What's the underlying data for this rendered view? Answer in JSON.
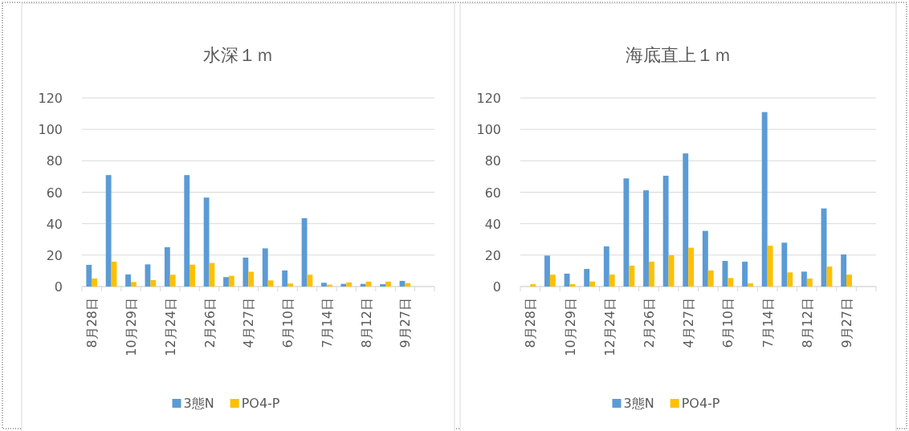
{
  "chart_data": [
    {
      "type": "bar",
      "title": "水深１ｍ",
      "categories": [
        "8月28日",
        null,
        "10月29日",
        null,
        "12月24日",
        null,
        "2月26日",
        null,
        "4月27日",
        null,
        "6月10日",
        null,
        "7月14日",
        null,
        "8月12日",
        null,
        "9月27日",
        null
      ],
      "series": [
        {
          "name": "3態N",
          "color": "#5b9bd5",
          "values": [
            13.8,
            70.9,
            7.7,
            14.1,
            25.0,
            70.9,
            56.6,
            6.0,
            18.4,
            24.3,
            10.2,
            43.5,
            2.4,
            1.7,
            1.7,
            1.5,
            3.6,
            null
          ]
        },
        {
          "name": "PO4-P",
          "color": "#ffc000",
          "values": [
            5.1,
            15.8,
            2.9,
            4.1,
            7.5,
            13.9,
            15.0,
            6.8,
            9.4,
            3.9,
            1.9,
            7.5,
            1.2,
            2.6,
            3.1,
            3.1,
            2.2,
            null
          ]
        }
      ],
      "ylim": [
        0,
        120
      ],
      "yticks": [
        0,
        20,
        40,
        60,
        80,
        100,
        120
      ],
      "grid": "y",
      "legend": "bottom"
    },
    {
      "type": "bar",
      "title": "海底直上１ｍ",
      "categories": [
        "8月28日",
        null,
        "10月29日",
        null,
        "12月24日",
        null,
        "2月26日",
        null,
        "4月27日",
        null,
        "6月10日",
        null,
        "7月14日",
        null,
        "8月12日",
        null,
        "9月27日",
        null
      ],
      "series": [
        {
          "name": "3態N",
          "color": "#5b9bd5",
          "values": [
            null,
            19.7,
            8.2,
            11.2,
            25.5,
            68.8,
            61.2,
            70.5,
            84.7,
            35.4,
            16.3,
            15.8,
            111.0,
            27.9,
            9.5,
            49.7,
            20.4,
            null
          ]
        },
        {
          "name": "PO4-P",
          "color": "#ffc000",
          "values": [
            1.5,
            7.5,
            1.5,
            3.2,
            7.6,
            13.3,
            15.8,
            19.9,
            24.7,
            10.2,
            5.4,
            2.0,
            26.0,
            9.0,
            5.1,
            12.7,
            7.6,
            null
          ]
        }
      ],
      "ylim": [
        0,
        120
      ],
      "yticks": [
        0,
        20,
        40,
        60,
        80,
        100,
        120
      ],
      "grid": "y",
      "legend": "bottom"
    }
  ]
}
